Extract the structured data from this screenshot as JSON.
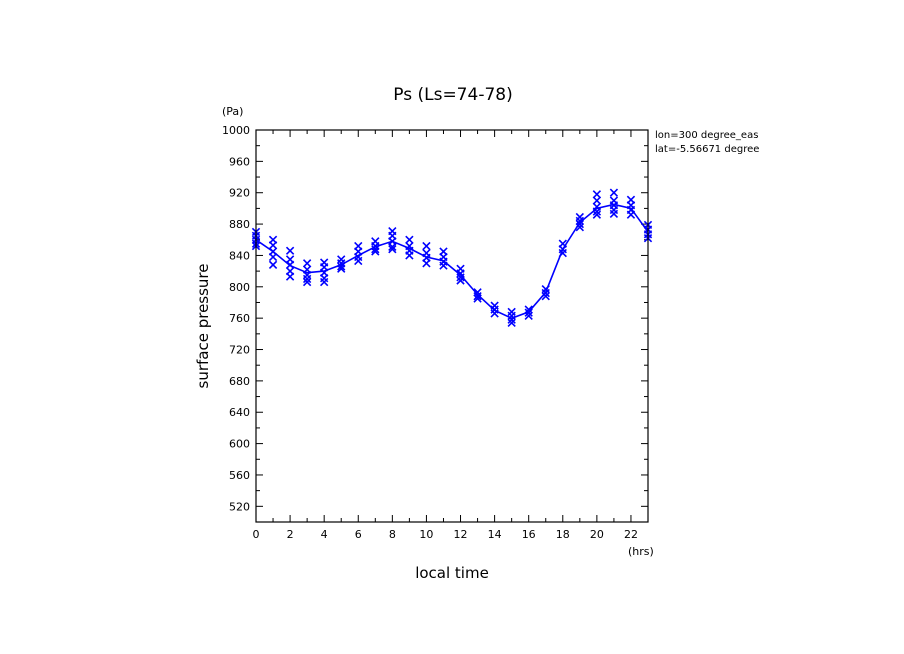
{
  "chart_data": {
    "type": "line",
    "title": "Ps (Ls=74-78)",
    "xlabel": "local time",
    "ylabel": "surface pressure",
    "xunit": "(hrs)",
    "yunit": "(Pa)",
    "annotations": [
      "lon=300 degree_eas",
      "lat=-5.56671 degree"
    ],
    "xlim": [
      0,
      23
    ],
    "ylim": [
      500,
      1000
    ],
    "xticks": [
      0,
      2,
      4,
      6,
      8,
      10,
      12,
      14,
      16,
      18,
      20,
      22
    ],
    "yticks": [
      520,
      560,
      600,
      640,
      680,
      720,
      760,
      800,
      840,
      880,
      920,
      960,
      1000
    ],
    "grid": false,
    "series": [
      {
        "type": "line",
        "color": "#0000ff",
        "x": [
          0,
          1,
          2,
          3,
          4,
          5,
          6,
          7,
          8,
          9,
          10,
          11,
          12,
          13,
          14,
          15,
          16,
          17,
          18,
          19,
          20,
          21,
          22,
          23
        ],
        "y": [
          860,
          845,
          827,
          818,
          820,
          828,
          840,
          851,
          858,
          849,
          838,
          833,
          815,
          790,
          770,
          760,
          768,
          793,
          848,
          882,
          900,
          905,
          900,
          870
        ]
      },
      {
        "type": "scatter",
        "marker": "x",
        "color": "#0000ff",
        "points": [
          [
            0,
            870
          ],
          [
            0,
            865
          ],
          [
            0,
            860
          ],
          [
            0,
            855
          ],
          [
            0,
            852
          ],
          [
            1,
            860
          ],
          [
            1,
            853
          ],
          [
            1,
            845
          ],
          [
            1,
            838
          ],
          [
            1,
            828
          ],
          [
            2,
            846
          ],
          [
            2,
            835
          ],
          [
            2,
            828
          ],
          [
            2,
            820
          ],
          [
            2,
            813
          ],
          [
            3,
            830
          ],
          [
            3,
            822
          ],
          [
            3,
            815
          ],
          [
            3,
            810
          ],
          [
            3,
            806
          ],
          [
            4,
            831
          ],
          [
            4,
            825
          ],
          [
            4,
            818
          ],
          [
            4,
            811
          ],
          [
            4,
            806
          ],
          [
            5,
            835
          ],
          [
            5,
            830
          ],
          [
            5,
            826
          ],
          [
            5,
            823
          ],
          [
            6,
            852
          ],
          [
            6,
            845
          ],
          [
            6,
            838
          ],
          [
            6,
            833
          ],
          [
            7,
            858
          ],
          [
            7,
            852
          ],
          [
            7,
            848
          ],
          [
            7,
            845
          ],
          [
            8,
            871
          ],
          [
            8,
            865
          ],
          [
            8,
            858
          ],
          [
            8,
            851
          ],
          [
            8,
            848
          ],
          [
            9,
            860
          ],
          [
            9,
            852
          ],
          [
            9,
            846
          ],
          [
            9,
            840
          ],
          [
            10,
            852
          ],
          [
            10,
            843
          ],
          [
            10,
            837
          ],
          [
            10,
            830
          ],
          [
            11,
            845
          ],
          [
            11,
            838
          ],
          [
            11,
            832
          ],
          [
            11,
            827
          ],
          [
            12,
            823
          ],
          [
            12,
            817
          ],
          [
            12,
            812
          ],
          [
            12,
            808
          ],
          [
            13,
            793
          ],
          [
            13,
            788
          ],
          [
            13,
            785
          ],
          [
            14,
            776
          ],
          [
            14,
            771
          ],
          [
            14,
            766
          ],
          [
            15,
            768
          ],
          [
            15,
            763
          ],
          [
            15,
            758
          ],
          [
            15,
            754
          ],
          [
            16,
            771
          ],
          [
            16,
            767
          ],
          [
            16,
            763
          ],
          [
            17,
            797
          ],
          [
            17,
            792
          ],
          [
            17,
            788
          ],
          [
            18,
            855
          ],
          [
            18,
            848
          ],
          [
            18,
            843
          ],
          [
            19,
            889
          ],
          [
            19,
            884
          ],
          [
            19,
            880
          ],
          [
            19,
            876
          ],
          [
            20,
            918
          ],
          [
            20,
            910
          ],
          [
            20,
            902
          ],
          [
            20,
            896
          ],
          [
            20,
            892
          ],
          [
            21,
            920
          ],
          [
            21,
            910
          ],
          [
            21,
            904
          ],
          [
            21,
            898
          ],
          [
            21,
            893
          ],
          [
            22,
            911
          ],
          [
            22,
            904
          ],
          [
            22,
            898
          ],
          [
            22,
            892
          ],
          [
            23,
            879
          ],
          [
            23,
            873
          ],
          [
            23,
            867
          ],
          [
            23,
            862
          ]
        ]
      }
    ]
  }
}
